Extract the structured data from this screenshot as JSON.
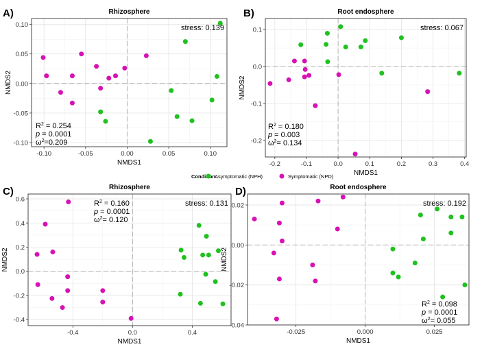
{
  "legend": {
    "title": "Condition",
    "items": [
      {
        "label": "Asymptomatic (NPH)",
        "color": "#1FC21F"
      },
      {
        "label": "Symptomatic (NPD)",
        "color": "#D612B4"
      }
    ]
  },
  "chart_data": [
    {
      "type": "scatter",
      "panel_label": "A)",
      "title": "Rhizosphere",
      "xlabel": "NMDS1",
      "ylabel": "NMDS2",
      "xlim": [
        -0.115,
        0.12
      ],
      "ylim": [
        -0.107,
        0.11
      ],
      "xticks": [
        -0.1,
        -0.05,
        0.0,
        0.05,
        0.1
      ],
      "xtick_labels": [
        "-0.10",
        "-0.05",
        "0.00",
        "0.05",
        "0.10"
      ],
      "yticks": [
        -0.1,
        -0.05,
        0.0,
        0.05,
        0.1
      ],
      "ytick_labels": [
        "-0.10",
        "-0.05",
        "0.00",
        "0.05",
        "0.10"
      ],
      "stress_text": "stress: 0.139",
      "stats_lines": [
        {
          "pre": "R",
          "sup": "2",
          "post": " = 0.254"
        },
        {
          "pre": "p",
          "sup": "",
          "post": " = 0.0001"
        },
        {
          "pre": "ω",
          "sup": "2",
          "post": "=0.209"
        }
      ],
      "series": [
        {
          "name": "Asymptomatic (NPH)",
          "points": [
            [
              0.112,
              0.102
            ],
            [
              0.07,
              0.071
            ],
            [
              0.108,
              0.012
            ],
            [
              0.053,
              -0.012
            ],
            [
              0.102,
              -0.028
            ],
            [
              0.06,
              -0.056
            ],
            [
              0.078,
              -0.063
            ],
            [
              0.028,
              -0.098
            ],
            [
              -0.032,
              -0.048
            ],
            [
              -0.026,
              -0.064
            ]
          ]
        },
        {
          "name": "Symptomatic (NPD)",
          "points": [
            [
              -0.101,
              0.044
            ],
            [
              -0.055,
              0.05
            ],
            [
              -0.097,
              0.013
            ],
            [
              -0.066,
              0.013
            ],
            [
              -0.037,
              0.029
            ],
            [
              -0.003,
              0.026
            ],
            [
              0.023,
              0.047
            ],
            [
              -0.014,
              0.013
            ],
            [
              -0.022,
              0.009
            ],
            [
              -0.032,
              -0.008
            ],
            [
              -0.08,
              -0.015
            ],
            [
              -0.066,
              -0.033
            ]
          ]
        }
      ]
    },
    {
      "type": "scatter",
      "panel_label": "B)",
      "title": "Root endosphere",
      "xlabel": "NMDS1",
      "ylabel": "NMDS2",
      "xlim": [
        -0.23,
        0.405
      ],
      "ylim": [
        -0.245,
        0.13
      ],
      "xticks": [
        -0.2,
        -0.1,
        0.0,
        0.1,
        0.2,
        0.3,
        0.4
      ],
      "xtick_labels": [
        "-0.2",
        "-0.1",
        "0.0",
        "0.1",
        "0.2",
        "0.3",
        "0.4"
      ],
      "yticks": [
        -0.2,
        -0.1,
        0.0,
        0.1
      ],
      "ytick_labels": [
        "-0.2",
        "-0.1",
        "0.0",
        "0.1"
      ],
      "stress_text": "stress: 0.067",
      "stats_lines": [
        {
          "pre": "R",
          "sup": "2",
          "post": " = 0.180"
        },
        {
          "pre": "p",
          "sup": "",
          "post": " = 0.003"
        },
        {
          "pre": "ω",
          "sup": "2",
          "post": "= 0.134"
        }
      ],
      "series": [
        {
          "name": "Asymptomatic (NPH)",
          "points": [
            [
              0.008,
              0.108
            ],
            [
              -0.034,
              0.09
            ],
            [
              -0.118,
              0.059
            ],
            [
              -0.038,
              0.06
            ],
            [
              0.024,
              0.053
            ],
            [
              0.072,
              0.053
            ],
            [
              0.086,
              0.07
            ],
            [
              0.2,
              0.078
            ],
            [
              -0.033,
              0.013
            ],
            [
              0.138,
              -0.018
            ],
            [
              0.383,
              -0.018
            ]
          ]
        },
        {
          "name": "Symptomatic (NPD)",
          "points": [
            [
              -0.138,
              0.015
            ],
            [
              -0.106,
              0.015
            ],
            [
              -0.156,
              -0.036
            ],
            [
              -0.104,
              -0.008
            ],
            [
              -0.092,
              -0.024
            ],
            [
              -0.106,
              -0.028
            ],
            [
              0.002,
              -0.022
            ],
            [
              -0.215,
              -0.046
            ],
            [
              -0.072,
              -0.106
            ],
            [
              0.283,
              -0.068
            ],
            [
              0.054,
              -0.237
            ]
          ]
        }
      ]
    },
    {
      "type": "scatter",
      "panel_label": "C)",
      "title": "Rhizosphere",
      "xlabel": "NMDS1",
      "ylabel": "NMDS2",
      "xlim": [
        -0.7,
        0.66
      ],
      "ylim": [
        -0.45,
        0.64
      ],
      "xticks": [
        -0.4,
        0.0,
        0.4
      ],
      "xtick_labels": [
        "-0.4",
        "0.0",
        "0.4"
      ],
      "yticks": [
        -0.4,
        -0.2,
        0.0,
        0.2,
        0.4,
        0.6
      ],
      "ytick_labels": [
        "-0.4",
        "-0.2",
        "0.0",
        "0.2",
        "0.4",
        "0.6"
      ],
      "stress_text": "stress: 0.131",
      "stats_lines": [
        {
          "pre": "R",
          "sup": "2",
          "post": " = 0.160"
        },
        {
          "pre": "p",
          "sup": "",
          "post": " = 0.0001"
        },
        {
          "pre": "ω",
          "sup": "2",
          "post": "= 0.120"
        }
      ],
      "series": [
        {
          "name": "Asymptomatic (NPH)",
          "points": [
            [
              0.445,
              0.38
            ],
            [
              0.495,
              0.29
            ],
            [
              0.325,
              0.175
            ],
            [
              0.575,
              0.17
            ],
            [
              0.47,
              0.135
            ],
            [
              0.345,
              0.115
            ],
            [
              0.51,
              0.135
            ],
            [
              0.49,
              -0.025
            ],
            [
              0.555,
              -0.085
            ],
            [
              0.32,
              -0.19
            ],
            [
              0.455,
              -0.265
            ],
            [
              0.605,
              -0.27
            ]
          ]
        },
        {
          "name": "Symptomatic (NPD)",
          "points": [
            [
              -0.43,
              0.575
            ],
            [
              -0.585,
              0.39
            ],
            [
              -0.535,
              0.16
            ],
            [
              -0.64,
              0.14
            ],
            [
              -0.435,
              -0.045
            ],
            [
              -0.635,
              -0.11
            ],
            [
              -0.435,
              -0.16
            ],
            [
              -0.2,
              -0.16
            ],
            [
              -0.54,
              -0.225
            ],
            [
              -0.2,
              -0.255
            ],
            [
              -0.47,
              -0.3
            ],
            [
              -0.01,
              -0.39
            ]
          ]
        }
      ]
    },
    {
      "type": "scatter",
      "panel_label": "D)",
      "title": "Root endosphere",
      "xlabel": "NMDS1",
      "ylabel": "NMDS2",
      "xlim": [
        -0.0425,
        0.0375
      ],
      "ylim": [
        -0.04,
        0.0255
      ],
      "xticks": [
        -0.025,
        0.0,
        0.025
      ],
      "xtick_labels": [
        "-0.025",
        "0.000",
        "0.025"
      ],
      "yticks": [
        -0.04,
        -0.02,
        0.0,
        0.02
      ],
      "ytick_labels": [
        "-0.04",
        "-0.02",
        "0.00",
        "0.02"
      ],
      "stress_text": "stress: 0.192",
      "stats_lines": [
        {
          "pre": "R",
          "sup": "2",
          "post": " = 0.098"
        },
        {
          "pre": "p",
          "sup": "",
          "post": " = 0.0001"
        },
        {
          "pre": "ω",
          "sup": "2",
          "post": "= 0.055"
        }
      ],
      "series": [
        {
          "name": "Asymptomatic (NPH)",
          "points": [
            [
              0.026,
              0.018
            ],
            [
              0.02,
              0.015
            ],
            [
              0.031,
              0.014
            ],
            [
              0.035,
              0.014
            ],
            [
              0.031,
              0.006
            ],
            [
              0.021,
              0.003
            ],
            [
              0.01,
              -0.002
            ],
            [
              0.018,
              -0.009
            ],
            [
              0.01,
              -0.014
            ],
            [
              0.012,
              -0.016
            ],
            [
              0.036,
              -0.02
            ],
            [
              0.028,
              -0.026
            ]
          ]
        },
        {
          "name": "Symptomatic (NPD)",
          "points": [
            [
              -0.008,
              0.024
            ],
            [
              -0.017,
              0.022
            ],
            [
              -0.03,
              0.021
            ],
            [
              -0.04,
              0.013
            ],
            [
              -0.031,
              0.011
            ],
            [
              -0.01,
              0.008
            ],
            [
              -0.03,
              0.002
            ],
            [
              -0.033,
              -0.004
            ],
            [
              -0.019,
              -0.01
            ],
            [
              -0.031,
              -0.017
            ],
            [
              -0.018,
              -0.018
            ],
            [
              -0.032,
              -0.037
            ]
          ]
        }
      ]
    }
  ]
}
